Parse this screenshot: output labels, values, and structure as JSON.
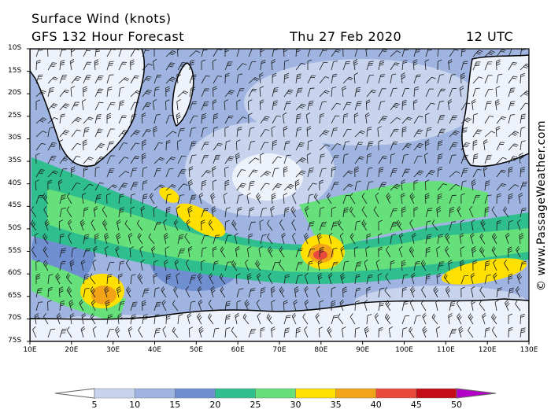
{
  "header": {
    "title": "Surface Wind (knots)",
    "subtitle": "GFS 132 Hour Forecast",
    "date": "Thu 27 Feb 2020",
    "time": "12 UTC"
  },
  "credit": "© www.PassageWeather.com",
  "map": {
    "lat_labels": [
      "10S",
      "15S",
      "20S",
      "25S",
      "30S",
      "35S",
      "40S",
      "45S",
      "50S",
      "55S",
      "60S",
      "65S",
      "70S",
      "75S"
    ],
    "lon_labels": [
      "10E",
      "20E",
      "30E",
      "40E",
      "50E",
      "60E",
      "70E",
      "80E",
      "90E",
      "100E",
      "110E",
      "120E",
      "130E"
    ]
  },
  "colorbar": {
    "labels": [
      "5",
      "10",
      "15",
      "20",
      "25",
      "30",
      "35",
      "40",
      "45",
      "50"
    ],
    "colors": [
      "#eef2fb",
      "#c8d4ee",
      "#9fb4e0",
      "#6f8fd0",
      "#2fbf8f",
      "#66e07a",
      "#ffe000",
      "#f2a317",
      "#e84a3b",
      "#c40d18",
      "#b400c8"
    ]
  }
}
